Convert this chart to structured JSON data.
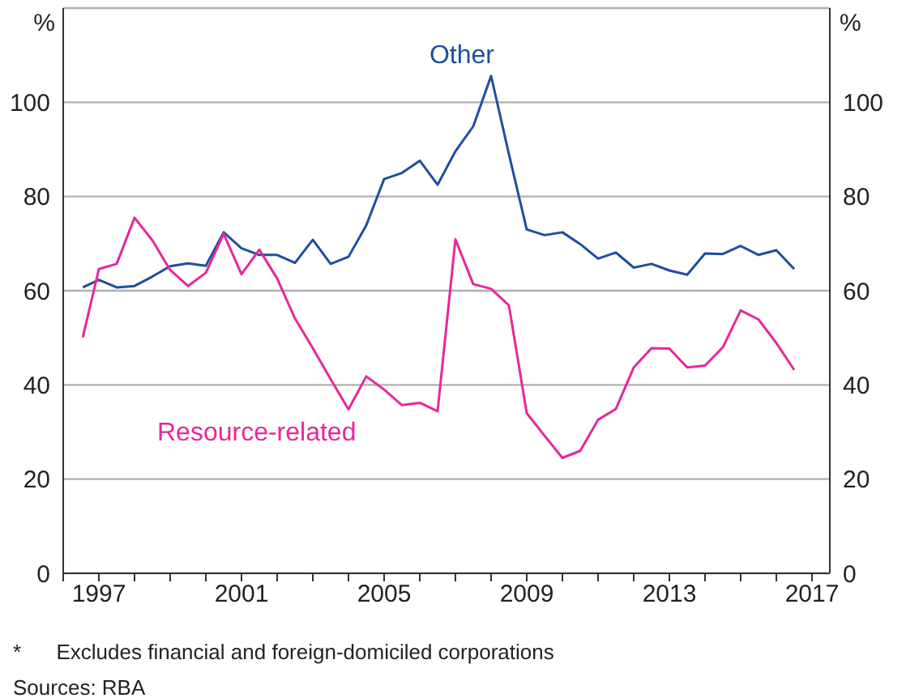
{
  "chart_data": {
    "type": "line",
    "ylabel": "%",
    "y2label": "%",
    "x": [
      1996.55,
      1997,
      1997.5,
      1998,
      1998.5,
      1999,
      1999.5,
      2000,
      2000.5,
      2001,
      2001.5,
      2002,
      2002.5,
      2003,
      2003.5,
      2004,
      2004.5,
      2005,
      2005.5,
      2006,
      2006.5,
      2007,
      2007.5,
      2008,
      2008.5,
      2009,
      2009.5,
      2010,
      2010.5,
      2011,
      2011.5,
      2012,
      2012.5,
      2013,
      2013.5,
      2014,
      2014.5,
      2015,
      2015.5,
      2016,
      2016.5
    ],
    "series": [
      {
        "name": "Other",
        "color": "#1f4e9e",
        "values": [
          60.7,
          62.3,
          60.7,
          61,
          63,
          65.2,
          65.8,
          65.3,
          72.4,
          69,
          67.6,
          67.6,
          65.9,
          70.8,
          65.7,
          67.2,
          73.9,
          83.7,
          85,
          87.6,
          82.5,
          89.6,
          94.9,
          105.6,
          89,
          73,
          71.8,
          72.4,
          69.9,
          66.8,
          68.1,
          64.9,
          65.7,
          64.3,
          63.4,
          67.9,
          67.8,
          69.5,
          67.6,
          68.6,
          64.6
        ]
      },
      {
        "name": "Resource-related",
        "color": "#e6289a",
        "values": [
          50.1,
          64.6,
          65.7,
          75.5,
          70.7,
          64.4,
          61,
          63.8,
          72.1,
          63.5,
          68.7,
          62.6,
          54.1,
          47.8,
          41.2,
          34.8,
          41.8,
          39,
          35.7,
          36.2,
          34.4,
          70.9,
          61.4,
          60.4,
          56.9,
          34,
          29.2,
          24.5,
          26,
          32.6,
          34.9,
          43.7,
          47.8,
          47.7,
          43.7,
          44.1,
          48,
          55.8,
          53.9,
          48.9,
          43.2
        ]
      }
    ],
    "xlim": [
      1996,
      2017.5
    ],
    "xticks": [
      {
        "value": 1996,
        "label": null
      },
      1997,
      {
        "value": 1998,
        "label": null
      },
      {
        "value": 1999,
        "label": null
      },
      {
        "value": 2000,
        "label": null
      },
      2001,
      {
        "value": 2002,
        "label": null
      },
      {
        "value": 2003,
        "label": null
      },
      {
        "value": 2004,
        "label": null
      },
      2005,
      {
        "value": 2006,
        "label": null
      },
      {
        "value": 2007,
        "label": null
      },
      {
        "value": 2008,
        "label": null
      },
      2009,
      {
        "value": 2010,
        "label": null
      },
      {
        "value": 2011,
        "label": null
      },
      {
        "value": 2012,
        "label": null
      },
      2013,
      {
        "value": 2014,
        "label": null
      },
      {
        "value": 2015,
        "label": null
      },
      {
        "value": 2016,
        "label": null
      },
      2017
    ],
    "ylim": [
      0,
      120
    ],
    "yticks": [
      0,
      20,
      40,
      60,
      80,
      100
    ],
    "y2lim": [
      0,
      120
    ],
    "y2ticks": [
      0,
      20,
      40,
      60,
      80,
      100
    ],
    "grid": "y",
    "legend": false,
    "marker": "none",
    "line_style": "solid",
    "annotations": [
      "*      Excludes financial and foreign-domiciled corporations",
      "Sources: RBA"
    ]
  }
}
